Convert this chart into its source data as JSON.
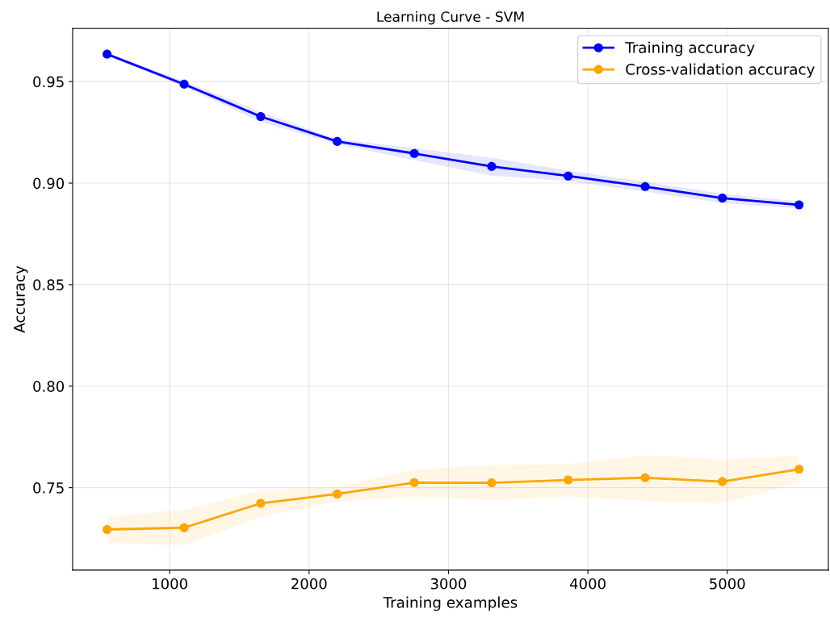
{
  "chart_data": {
    "type": "line",
    "title": "Learning Curve - SVM",
    "xlabel": "Training examples",
    "ylabel": "Accuracy",
    "x": [
      551,
      1104,
      1653,
      2202,
      2755,
      3310,
      3859,
      4411,
      4965,
      5515
    ],
    "series": [
      {
        "name": "Training accuracy",
        "color": "#0000ff",
        "values": [
          0.9635,
          0.9487,
          0.9328,
          0.9205,
          0.9146,
          0.9082,
          0.9035,
          0.8983,
          0.8926,
          0.8893
        ],
        "lower": [
          0.9629,
          0.9474,
          0.9302,
          0.9192,
          0.9113,
          0.9037,
          0.901,
          0.8958,
          0.8902,
          0.8875
        ],
        "upper": [
          0.9641,
          0.9503,
          0.9351,
          0.9218,
          0.9172,
          0.9125,
          0.9062,
          0.9007,
          0.8947,
          0.891
        ]
      },
      {
        "name": "Cross-validation accuracy",
        "color": "#ffa500",
        "values": [
          0.7294,
          0.7303,
          0.7423,
          0.7469,
          0.7525,
          0.7524,
          0.7538,
          0.7549,
          0.753,
          0.7591
        ],
        "lower": [
          0.7229,
          0.7217,
          0.7357,
          0.7431,
          0.7456,
          0.7438,
          0.7457,
          0.7435,
          0.7422,
          0.7524
        ],
        "upper": [
          0.7358,
          0.739,
          0.7487,
          0.7504,
          0.759,
          0.7612,
          0.7616,
          0.766,
          0.7639,
          0.7657
        ]
      }
    ],
    "xlim": [
      304,
      5725
    ],
    "ylim": [
      0.7094,
      0.9762
    ],
    "xticks": [
      1000,
      2000,
      3000,
      4000,
      5000
    ],
    "yticks": [
      {
        "value": 0.75,
        "label": "0.75"
      },
      {
        "value": 0.8,
        "label": "0.80"
      },
      {
        "value": 0.85,
        "label": "0.85"
      },
      {
        "value": 0.9,
        "label": "0.90"
      },
      {
        "value": 0.95,
        "label": "0.95"
      }
    ],
    "grid": true,
    "legend": "top right",
    "marker": "circle",
    "line_style": "solid"
  }
}
